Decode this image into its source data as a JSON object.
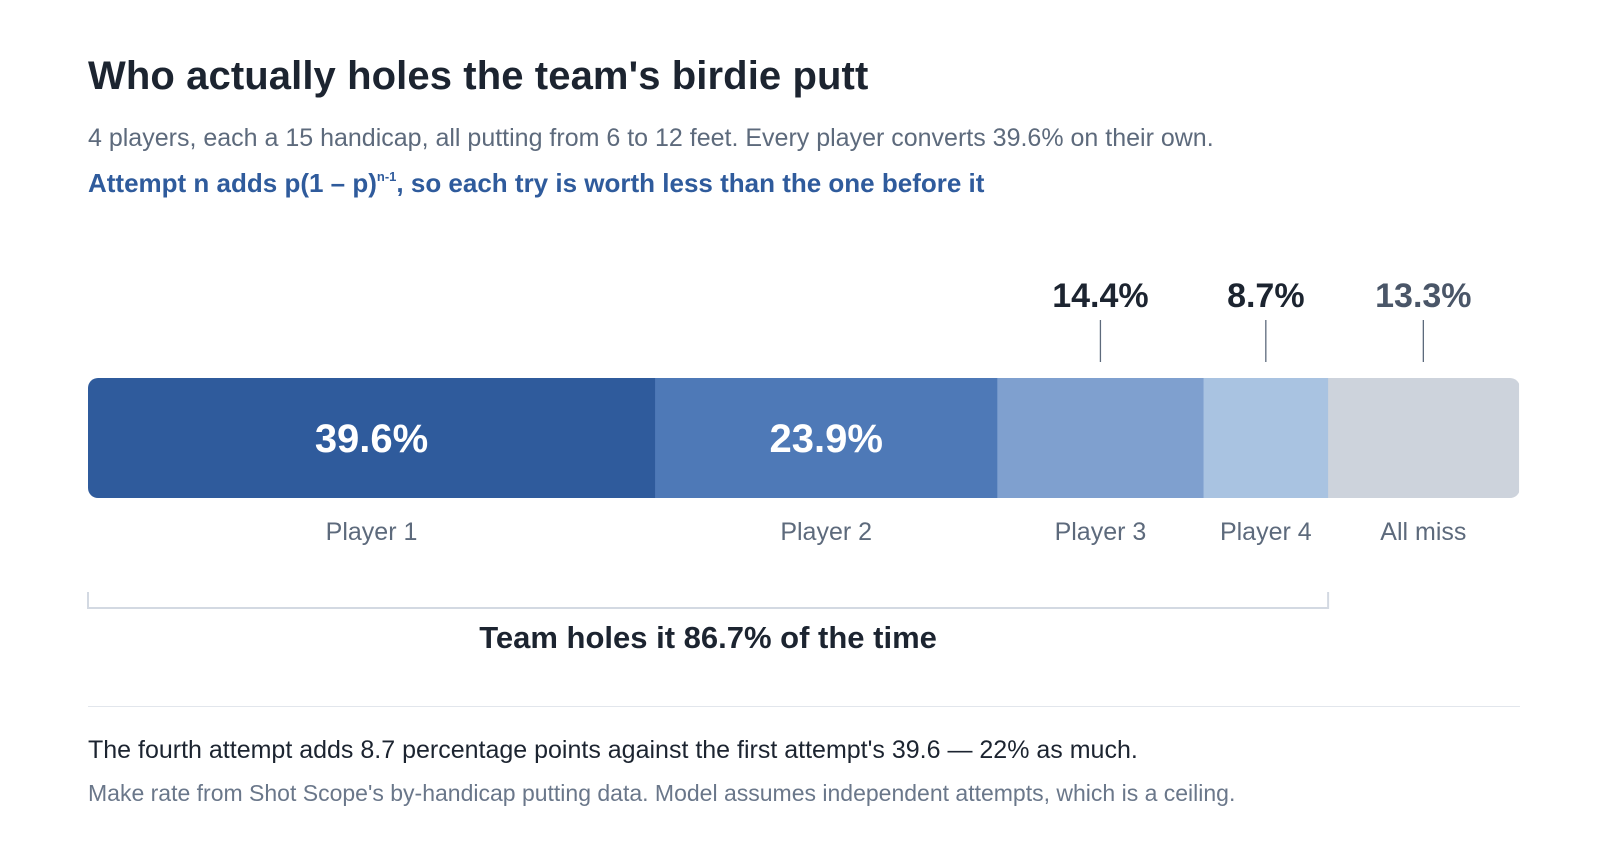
{
  "title": "Who actually holes the team's birdie putt",
  "subtitle": "4 players, each a 15 handicap, all putting from 6 to 12 feet. Every player converts 39.6% on their own.",
  "formula": {
    "text_main": "Attempt n adds p(1 – p)",
    "superscript": "n-1",
    "text_rest": ", so each try is worth less than the one before it"
  },
  "chart_data": {
    "type": "bar",
    "orientation": "horizontal-stacked",
    "unit": "%",
    "segments": [
      {
        "label": "Player 1",
        "value": 39.6,
        "value_label": "39.6%",
        "color": "#2f5b9c",
        "label_inside": true
      },
      {
        "label": "Player 2",
        "value": 23.9,
        "value_label": "23.9%",
        "color": "#4e79b7",
        "label_inside": true
      },
      {
        "label": "Player 3",
        "value": 14.4,
        "value_label": "14.4%",
        "color": "#7fa0cf",
        "label_inside": false
      },
      {
        "label": "Player 4",
        "value": 8.7,
        "value_label": "8.7%",
        "color": "#a9c3e1",
        "label_inside": false
      },
      {
        "label": "All miss",
        "value": 13.3,
        "value_label": "13.3%",
        "color": "#cdd3dc",
        "label_inside": false
      }
    ],
    "total": 100,
    "bracket": {
      "covers_segments": 4,
      "label": "Team holes it 86.7% of the time",
      "value": 86.7
    }
  },
  "footer": {
    "note": "The fourth attempt adds 8.7 percentage points against the first attempt's 39.6 — 22% as much.",
    "source": "Make rate from Shot Scope's by-handicap putting data. Model assumes independent attempts, which is a ceiling."
  }
}
